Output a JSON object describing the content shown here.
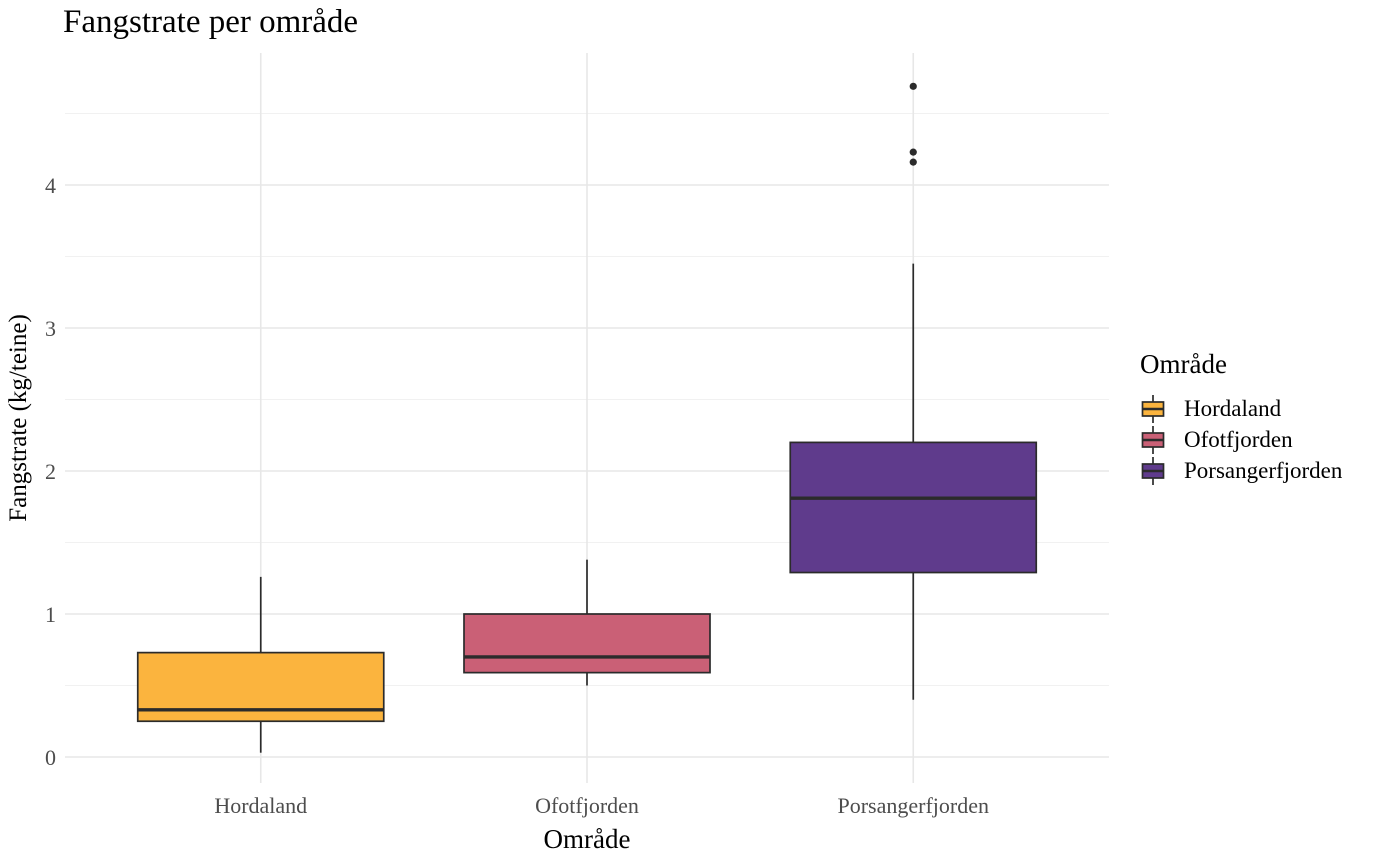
{
  "chart_data": {
    "type": "boxplot",
    "title": "Fangstrate per område",
    "xlabel": "Område",
    "ylabel": "Fangstrate (kg/teine)",
    "legend_title": "Område",
    "legend_position": "right",
    "grid": "on",
    "ylim": [
      -0.18,
      4.92
    ],
    "yticks": [
      0,
      1,
      2,
      3,
      4
    ],
    "yticks_minor": [
      0.5,
      1.5,
      2.5,
      3.5,
      4.5
    ],
    "categories": [
      "Hordaland",
      "Ofotfjorden",
      "Porsangerfjorden"
    ],
    "series": [
      {
        "name": "Hordaland",
        "fill": "#FBB43E",
        "whisker_low": 0.03,
        "q1": 0.25,
        "median": 0.33,
        "q3": 0.73,
        "whisker_high": 1.26,
        "outliers": []
      },
      {
        "name": "Ofotfjorden",
        "fill": "#CA6076",
        "whisker_low": 0.5,
        "q1": 0.59,
        "median": 0.7,
        "q3": 1.0,
        "whisker_high": 1.38,
        "outliers": []
      },
      {
        "name": "Porsangerfjorden",
        "fill": "#5F3B8C",
        "whisker_low": 0.4,
        "q1": 1.29,
        "median": 1.81,
        "q3": 2.2,
        "whisker_high": 3.45,
        "outliers": [
          4.16,
          4.23,
          4.69
        ]
      }
    ],
    "colors": {
      "box_stroke": "#2B2B2B",
      "outlier": "#2B2B2B",
      "tick_label": "#4D4D4D",
      "axis_title": "#000000",
      "grid_major": "#E7E7E7",
      "grid_minor": "#F1F1F1",
      "background": "#FFFFFF"
    }
  }
}
